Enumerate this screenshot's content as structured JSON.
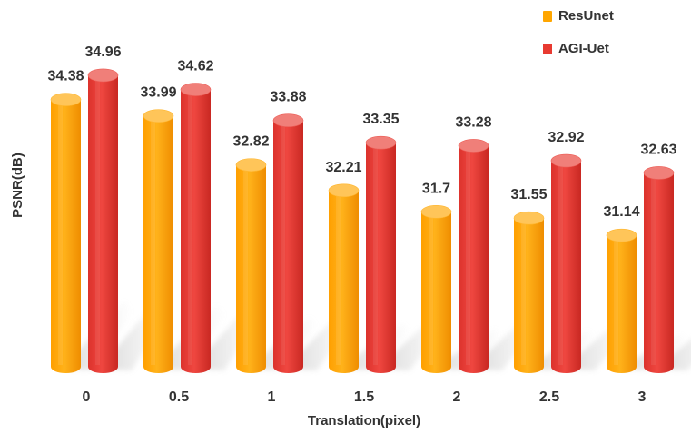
{
  "chart_data": {
    "type": "bar",
    "title": "",
    "xlabel": "Translation(pixel)",
    "ylabel": "PSNR(dB)",
    "categories": [
      "0",
      "0.5",
      "1",
      "1.5",
      "2",
      "2.5",
      "3"
    ],
    "series": [
      {
        "name": "ResUnet",
        "values": [
          34.38,
          33.99,
          32.82,
          32.21,
          31.7,
          31.55,
          31.14
        ],
        "value_labels": [
          "34.38",
          "33.99",
          "32.82",
          "32.21",
          "31.7",
          "31.55",
          "31.14"
        ],
        "color": "#ffa600"
      },
      {
        "name": "AGI-Uet",
        "values": [
          34.96,
          34.62,
          33.88,
          33.35,
          33.28,
          32.92,
          32.63
        ],
        "value_labels": [
          "34.96",
          "34.62",
          "33.88",
          "33.35",
          "33.28",
          "32.92",
          "32.63"
        ],
        "color": "#e83a31"
      }
    ],
    "ylim": [
      28,
      35.5
    ],
    "grid": false,
    "legend_position": "top-right",
    "bar_style": "3d-cylinder"
  }
}
